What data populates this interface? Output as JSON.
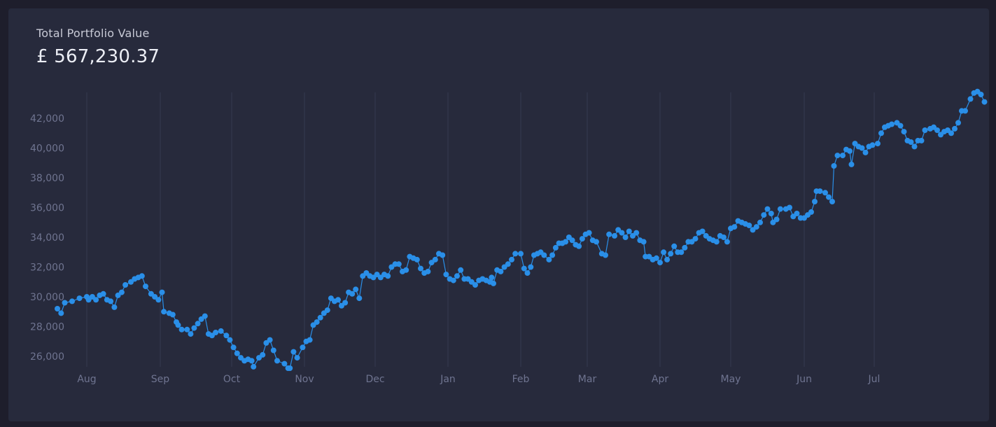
{
  "header": {
    "label": "Total Portfolio Value",
    "value": "£ 567,230.37"
  },
  "chart_data": {
    "type": "line",
    "title": "",
    "xlabel": "",
    "ylabel": "",
    "x_ticks": [
      "Aug",
      "Sep",
      "Oct",
      "Nov",
      "Dec",
      "Jan",
      "Feb",
      "Mar",
      "Apr",
      "May",
      "Jun",
      "Jul"
    ],
    "y_ticks": [
      26000,
      28000,
      30000,
      32000,
      34000,
      36000,
      38000,
      40000,
      42000
    ],
    "ylim": [
      25000,
      43800
    ],
    "grid": "vertical",
    "colors": {
      "line": "#2a8fe8",
      "grid": "#363a4f",
      "tick": "#6f7490"
    },
    "series": [
      {
        "values": [
          [
            -0.8,
            29200
          ],
          [
            -0.7,
            28900
          ],
          [
            -0.6,
            29600
          ],
          [
            -0.4,
            29700
          ],
          [
            -0.2,
            29900
          ],
          [
            0.0,
            30000
          ],
          [
            0.05,
            29800
          ],
          [
            0.15,
            30000
          ],
          [
            0.25,
            29800
          ],
          [
            0.35,
            30100
          ],
          [
            0.45,
            30200
          ],
          [
            0.55,
            29800
          ],
          [
            0.65,
            29700
          ],
          [
            0.75,
            29300
          ],
          [
            0.85,
            30100
          ],
          [
            0.95,
            30300
          ],
          [
            1.05,
            30800
          ],
          [
            1.2,
            31000
          ],
          [
            1.3,
            31200
          ],
          [
            1.4,
            31300
          ],
          [
            1.5,
            31400
          ],
          [
            1.6,
            30700
          ],
          [
            1.75,
            30200
          ],
          [
            1.85,
            30000
          ],
          [
            1.95,
            29800
          ],
          [
            2.05,
            30300
          ],
          [
            2.1,
            29000
          ],
          [
            2.25,
            28900
          ],
          [
            2.35,
            28800
          ],
          [
            2.45,
            28300
          ],
          [
            2.5,
            28100
          ],
          [
            2.6,
            27800
          ],
          [
            2.75,
            27800
          ],
          [
            2.85,
            27500
          ],
          [
            2.95,
            27900
          ],
          [
            3.05,
            28200
          ],
          [
            3.15,
            28500
          ],
          [
            3.25,
            28700
          ],
          [
            3.35,
            27500
          ],
          [
            3.45,
            27400
          ],
          [
            3.55,
            27600
          ],
          [
            3.7,
            27700
          ],
          [
            3.85,
            27400
          ],
          [
            3.95,
            27100
          ],
          [
            4.05,
            26600
          ],
          [
            4.15,
            26200
          ],
          [
            4.25,
            25900
          ],
          [
            4.35,
            25700
          ],
          [
            4.45,
            25800
          ],
          [
            4.55,
            25700
          ],
          [
            4.6,
            25300
          ],
          [
            4.75,
            25900
          ],
          [
            4.85,
            26100
          ],
          [
            4.95,
            26900
          ],
          [
            5.05,
            27100
          ],
          [
            5.15,
            26400
          ],
          [
            5.25,
            25700
          ],
          [
            5.45,
            25500
          ],
          [
            5.55,
            25200
          ],
          [
            5.6,
            25200
          ],
          [
            5.7,
            26300
          ],
          [
            5.8,
            25900
          ],
          [
            5.95,
            26600
          ],
          [
            6.05,
            27000
          ],
          [
            6.15,
            27100
          ],
          [
            6.25,
            28100
          ],
          [
            6.35,
            28300
          ],
          [
            6.45,
            28600
          ],
          [
            6.55,
            28900
          ],
          [
            6.65,
            29100
          ],
          [
            6.75,
            29900
          ],
          [
            6.85,
            29700
          ],
          [
            6.95,
            29800
          ],
          [
            7.05,
            29400
          ],
          [
            7.15,
            29600
          ],
          [
            7.25,
            30300
          ],
          [
            7.35,
            30200
          ],
          [
            7.45,
            30500
          ],
          [
            7.55,
            29900
          ],
          [
            7.65,
            31400
          ],
          [
            7.75,
            31600
          ],
          [
            7.85,
            31400
          ],
          [
            7.95,
            31300
          ],
          [
            8.05,
            31500
          ],
          [
            8.15,
            31300
          ],
          [
            8.25,
            31500
          ],
          [
            8.35,
            31400
          ],
          [
            8.45,
            32000
          ],
          [
            8.55,
            32200
          ],
          [
            8.65,
            32200
          ],
          [
            8.75,
            31700
          ],
          [
            8.85,
            31800
          ],
          [
            8.95,
            32700
          ],
          [
            9.05,
            32600
          ],
          [
            9.15,
            32500
          ],
          [
            9.25,
            31900
          ],
          [
            9.35,
            31600
          ],
          [
            9.45,
            31700
          ],
          [
            9.55,
            32300
          ],
          [
            9.65,
            32500
          ],
          [
            9.75,
            32900
          ],
          [
            9.85,
            32800
          ],
          [
            9.95,
            31500
          ],
          [
            10.05,
            31200
          ],
          [
            10.15,
            31100
          ],
          [
            10.25,
            31400
          ],
          [
            10.35,
            31800
          ],
          [
            10.45,
            31200
          ],
          [
            10.55,
            31200
          ],
          [
            10.65,
            31000
          ],
          [
            10.75,
            30800
          ],
          [
            10.85,
            31100
          ],
          [
            10.95,
            31200
          ],
          [
            11.05,
            31100
          ],
          [
            11.15,
            31000
          ],
          [
            11.2,
            31300
          ],
          [
            11.25,
            30900
          ],
          [
            11.35,
            31800
          ],
          [
            11.45,
            31700
          ],
          [
            11.55,
            32000
          ],
          [
            11.65,
            32200
          ],
          [
            11.75,
            32500
          ],
          [
            11.85,
            32900
          ],
          [
            12.0,
            32900
          ],
          [
            12.1,
            31900
          ],
          [
            12.2,
            31600
          ],
          [
            12.3,
            32000
          ],
          [
            12.4,
            32800
          ],
          [
            12.5,
            32900
          ],
          [
            12.6,
            33000
          ],
          [
            12.7,
            32800
          ],
          [
            12.85,
            32500
          ],
          [
            12.95,
            32800
          ],
          [
            13.05,
            33300
          ],
          [
            13.15,
            33600
          ],
          [
            13.25,
            33600
          ],
          [
            13.35,
            33700
          ],
          [
            13.45,
            34000
          ],
          [
            13.55,
            33800
          ],
          [
            13.65,
            33500
          ],
          [
            13.75,
            33400
          ],
          [
            13.85,
            33900
          ],
          [
            13.95,
            34200
          ],
          [
            14.05,
            34300
          ],
          [
            14.15,
            33800
          ],
          [
            14.25,
            33700
          ],
          [
            14.4,
            32900
          ],
          [
            14.5,
            32800
          ],
          [
            14.6,
            34200
          ],
          [
            14.75,
            34100
          ],
          [
            14.85,
            34500
          ],
          [
            14.95,
            34300
          ],
          [
            15.05,
            34000
          ],
          [
            15.15,
            34400
          ],
          [
            15.25,
            34100
          ],
          [
            15.35,
            34300
          ],
          [
            15.45,
            33800
          ],
          [
            15.55,
            33700
          ],
          [
            15.6,
            32700
          ],
          [
            15.7,
            32700
          ],
          [
            15.8,
            32500
          ],
          [
            15.9,
            32600
          ],
          [
            16.0,
            32300
          ],
          [
            16.1,
            33000
          ],
          [
            16.2,
            32500
          ],
          [
            16.3,
            32900
          ],
          [
            16.4,
            33400
          ],
          [
            16.5,
            33000
          ],
          [
            16.6,
            33000
          ],
          [
            16.7,
            33300
          ],
          [
            16.8,
            33700
          ],
          [
            16.9,
            33700
          ],
          [
            17.0,
            33900
          ],
          [
            17.1,
            34300
          ],
          [
            17.2,
            34400
          ],
          [
            17.3,
            34100
          ],
          [
            17.4,
            33900
          ],
          [
            17.5,
            33800
          ],
          [
            17.6,
            33700
          ],
          [
            17.7,
            34100
          ],
          [
            17.8,
            34000
          ],
          [
            17.9,
            33700
          ],
          [
            18.0,
            34600
          ],
          [
            18.1,
            34700
          ],
          [
            18.2,
            35100
          ],
          [
            18.3,
            35000
          ],
          [
            18.4,
            34900
          ],
          [
            18.5,
            34800
          ],
          [
            18.6,
            34500
          ],
          [
            18.7,
            34700
          ],
          [
            18.8,
            35000
          ],
          [
            18.9,
            35500
          ],
          [
            19.0,
            35900
          ],
          [
            19.1,
            35600
          ],
          [
            19.15,
            35000
          ],
          [
            19.25,
            35200
          ],
          [
            19.35,
            35900
          ],
          [
            19.5,
            35900
          ],
          [
            19.6,
            36000
          ],
          [
            19.7,
            35400
          ],
          [
            19.8,
            35600
          ],
          [
            19.9,
            35300
          ],
          [
            20.0,
            35300
          ],
          [
            20.1,
            35500
          ],
          [
            20.2,
            35700
          ],
          [
            20.3,
            36400
          ],
          [
            20.35,
            37100
          ],
          [
            20.45,
            37100
          ],
          [
            20.6,
            37000
          ],
          [
            20.7,
            36700
          ],
          [
            20.8,
            36400
          ],
          [
            20.85,
            38800
          ],
          [
            20.95,
            39500
          ],
          [
            21.1,
            39500
          ],
          [
            21.2,
            39900
          ],
          [
            21.3,
            39800
          ],
          [
            21.35,
            38900
          ],
          [
            21.45,
            40300
          ],
          [
            21.55,
            40100
          ],
          [
            21.65,
            40000
          ],
          [
            21.75,
            39700
          ],
          [
            21.85,
            40100
          ],
          [
            21.95,
            40200
          ],
          [
            22.1,
            40300
          ],
          [
            22.2,
            41000
          ],
          [
            22.3,
            41400
          ],
          [
            22.4,
            41500
          ],
          [
            22.5,
            41600
          ],
          [
            22.65,
            41700
          ],
          [
            22.75,
            41500
          ],
          [
            22.85,
            41100
          ],
          [
            22.95,
            40500
          ],
          [
            23.05,
            40400
          ],
          [
            23.15,
            40100
          ],
          [
            23.25,
            40500
          ],
          [
            23.35,
            40500
          ],
          [
            23.45,
            41200
          ],
          [
            23.6,
            41300
          ],
          [
            23.7,
            41400
          ],
          [
            23.8,
            41200
          ],
          [
            23.9,
            40900
          ],
          [
            24.0,
            41100
          ],
          [
            24.1,
            41200
          ],
          [
            24.2,
            41000
          ],
          [
            24.3,
            41300
          ],
          [
            24.4,
            41700
          ],
          [
            24.5,
            42500
          ],
          [
            24.6,
            42500
          ],
          [
            24.75,
            43300
          ],
          [
            24.85,
            43700
          ],
          [
            24.95,
            43800
          ],
          [
            25.05,
            43600
          ],
          [
            25.15,
            43100
          ]
        ]
      }
    ]
  }
}
